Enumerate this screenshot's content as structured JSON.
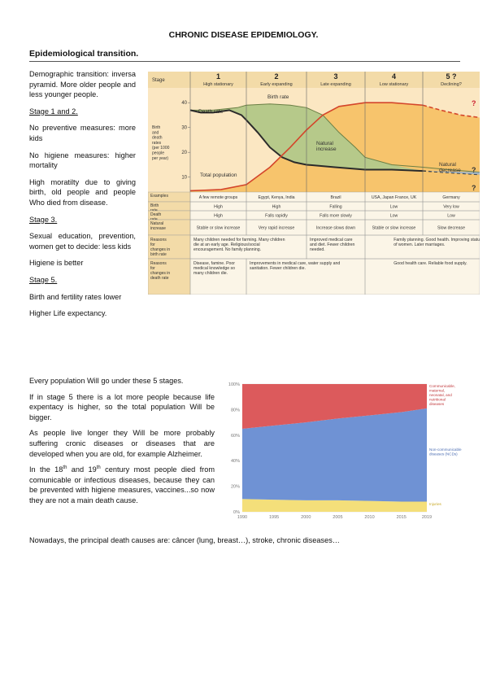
{
  "doc": {
    "title": "CHRONIC DISEASE EPIDEMIOLOGY.",
    "subtitle": "Epidemiological transition."
  },
  "left": {
    "p1": "Demographic transition: inversa pyramid. More older people and less younger people.",
    "h_stage12": "Stage 1 and 2.",
    "p2": "No preventive measures: more kids",
    "p3": "No higiene measures: higher mortality",
    "p4": "High moratilty due to giving birth, old people and people Who died from disease.",
    "h_stage3": "Stage 3.",
    "p5": "Sexual education, prevention, women get to decide: less kids",
    "p6": "Higiene is better",
    "h_stage5": "Stage 5.",
    "p7": "Birth and fertility rates lower",
    "p8": "Higher Life expectancy."
  },
  "bottom": {
    "p1": "Every population Will go under these 5 stages.",
    "p2": "If in stage 5 there is a lot more people because life expentacy is higher, so the total population Will be bigger.",
    "p3": "As people live longer they Will be more probably suffering cronic diseases or diseases that are developed when you are old, for example Alzheimer.",
    "p4_a": "In the 18",
    "p4_sup1": "th",
    "p4_b": " and 19",
    "p4_sup2": "th",
    "p4_c": " century most people died from comunicable or infectious diseases, because they can be prevented with higiene measures, vaccines...so now they are not a main death cause.",
    "final": "Nowadays, the principal death causes are: câncer (lung, breast…), stroke, chronic diseases…"
  },
  "transition": {
    "stage_header": "Stage",
    "stages": [
      {
        "num": "1",
        "name": "High stationary"
      },
      {
        "num": "2",
        "name": "Early expanding"
      },
      {
        "num": "3",
        "name": "Late expanding"
      },
      {
        "num": "4",
        "name": "Low stationary"
      },
      {
        "num": "5 ?",
        "name": "Declining?"
      }
    ],
    "ylabel_lines": [
      "Birth",
      "and",
      "death",
      "rates",
      "(per 1000",
      "people",
      "per year)"
    ],
    "yticks": [
      "40",
      "30",
      "20",
      "10"
    ],
    "labels": {
      "birth_rate": "Birth rate",
      "death_rate": "Death rate",
      "natural_increase": [
        "Natural",
        "increase"
      ],
      "natural_decrease": [
        "Natural",
        "decrease"
      ],
      "total_population": "Total population",
      "q": "?"
    },
    "colors": {
      "birth": "#b6c98a",
      "pop": "#f7c46c",
      "bg": "#fbe7c2",
      "header": "#f3dba8",
      "line": "#2b2b2b",
      "popline": "#d4452a"
    },
    "table": [
      {
        "label": "Examples",
        "cells": [
          "A few remote groups",
          "Egypt, Kenya, India",
          "Brazil",
          "USA, Japan France, UK",
          "Germany"
        ]
      },
      {
        "label": "Birth rate",
        "cells": [
          "High",
          "High",
          "Falling",
          "Low",
          "Very low"
        ]
      },
      {
        "label": "Death rate",
        "cells": [
          "High",
          "Falls rapidly",
          "Falls more slowly",
          "Low",
          "Low"
        ]
      },
      {
        "label": "Natural increase",
        "cells": [
          "Stable or slow increase",
          "Very rapid increase",
          "Increase slows down",
          "Stable or slow increase",
          "Slow decrease"
        ]
      }
    ],
    "reasons_birth_label": "Reasons for changes in birth rate",
    "reasons_birth": [
      "Many children needed for farming. Many children die at an early age. Religious/social encouragement. No family planning.",
      "Improved medical care and diet. Fewer children needed.",
      "Family planning. Good health. Improving status of women. Later marriages."
    ],
    "reasons_death_label": "Reasons for changes in death rate",
    "reasons_death": [
      "Disease, famine. Poor medical knowledge so many children die.",
      "Improvements in medical care, water supply and sanitation. Fewer children die.",
      "Good health care. Reliable food supply."
    ]
  },
  "chart_data": {
    "type": "area",
    "x": [
      1990,
      1995,
      2000,
      2005,
      2010,
      2015,
      2019
    ],
    "xticks": [
      "1990",
      "1995",
      "2000",
      "2005",
      "2010",
      "2015",
      "2019"
    ],
    "yticks": [
      "100%",
      "80%",
      "60%",
      "40%",
      "20%",
      "0%"
    ],
    "ylim": [
      0,
      100
    ],
    "stacked": true,
    "series": [
      {
        "name": "Injuries",
        "values": [
          10,
          9.5,
          9,
          9,
          8.5,
          8,
          8
        ],
        "color": "#f4df7a"
      },
      {
        "name": "Non-communicable diseases (NCDs)",
        "values": [
          55,
          58,
          61,
          64,
          67,
          70,
          73
        ],
        "color": "#6f92d4"
      },
      {
        "name": "Communicable, maternal, neonatal, and nutritional diseases",
        "values": [
          35,
          32.5,
          30,
          27,
          24.5,
          22,
          19
        ],
        "color": "#dc5a5c"
      }
    ],
    "legend_text": {
      "injuries": "Injuries",
      "ncd": [
        "Non-communicable",
        "diseases (NCDs)"
      ],
      "comm": [
        "Communicable,",
        "maternal,",
        "neonatal, and",
        "nutritional",
        "diseases"
      ]
    }
  }
}
